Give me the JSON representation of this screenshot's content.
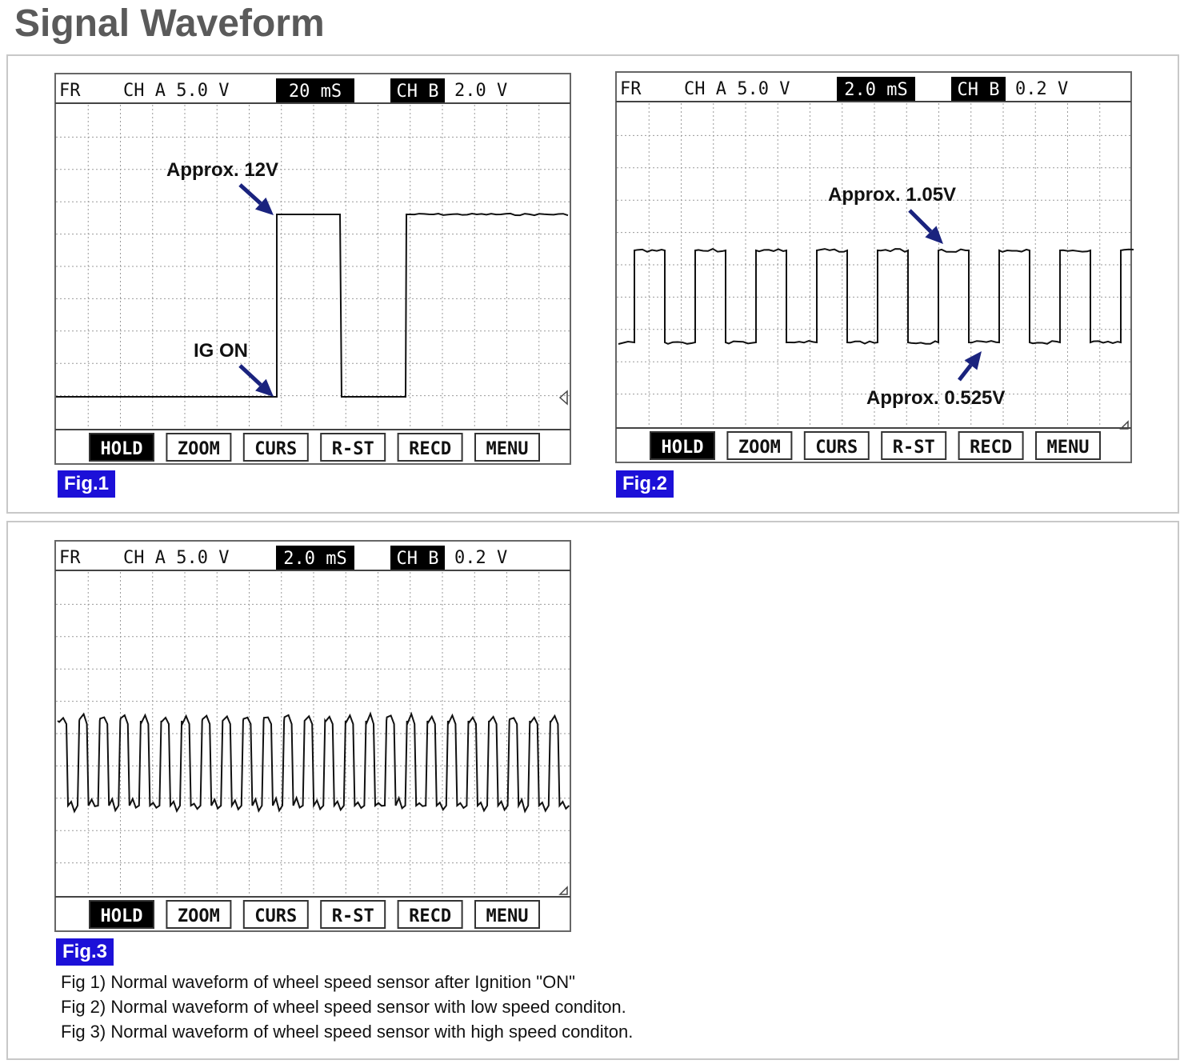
{
  "page_title": "Signal Waveform",
  "colors": {
    "badge": "#1c10d8",
    "arrow": "#1a237e",
    "trace": "#111111",
    "frame": "#666666"
  },
  "figures": [
    {
      "id": "fig1",
      "label": "Fig.1",
      "header": {
        "fr": "FR",
        "ch_a": "CH A 5.0 V",
        "time": "20 mS",
        "ch_b_label": "CH B",
        "ch_b_value": "2.0 V"
      },
      "menu": [
        "HOLD",
        "ZOOM",
        "CURS",
        "R-ST",
        "RECD",
        "MENU"
      ],
      "annotations": [
        "Approx. 12V",
        "IG ON"
      ]
    },
    {
      "id": "fig2",
      "label": "Fig.2",
      "header": {
        "fr": "FR",
        "ch_a": "CH A 5.0 V",
        "time": "2.0 mS",
        "ch_b_label": "CH B",
        "ch_b_value": "0.2 V"
      },
      "menu": [
        "HOLD",
        "ZOOM",
        "CURS",
        "R-ST",
        "RECD",
        "MENU"
      ],
      "annotations": [
        "Approx. 1.05V",
        "Approx. 0.525V"
      ]
    },
    {
      "id": "fig3",
      "label": "Fig.3",
      "header": {
        "fr": "FR",
        "ch_a": "CH A 5.0 V",
        "time": "2.0 mS",
        "ch_b_label": "CH B",
        "ch_b_value": "0.2 V"
      },
      "menu": [
        "HOLD",
        "ZOOM",
        "CURS",
        "R-ST",
        "RECD",
        "MENU"
      ],
      "annotations": []
    }
  ],
  "captions": [
    "Fig 1) Normal waveform of wheel speed sensor after Ignition \"ON\"",
    "Fig 2) Normal waveform of wheel speed sensor with low speed conditon.",
    "Fig 3) Normal waveform of wheel speed sensor with high speed conditon."
  ]
}
